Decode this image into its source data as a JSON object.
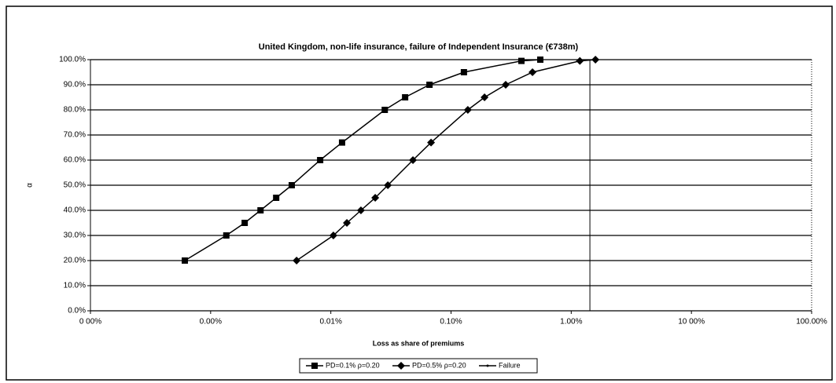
{
  "chart_data": {
    "type": "line",
    "title": "United Kingdom, non-life insurance, failure of Independent Insurance (€738m)",
    "x_label": "Loss as share of premiums",
    "y_label": "α",
    "x_log": true,
    "grid": true,
    "legend": "bottom",
    "xlim": [
      0.0001,
      100
    ],
    "xticks": [
      {
        "value": 0.0001,
        "label": "0 00%"
      },
      {
        "value": 0.001,
        "label": "0.00%"
      },
      {
        "value": 0.01,
        "label": "0.01%"
      },
      {
        "value": 0.1,
        "label": "0.10%"
      },
      {
        "value": 1,
        "label": "1.00%"
      },
      {
        "value": 10,
        "label": "10 00%"
      },
      {
        "value": 100,
        "label": "100.00%"
      }
    ],
    "ylim": [
      0,
      100
    ],
    "yticks": [
      {
        "value": 0,
        "label": "0.0%"
      },
      {
        "value": 10,
        "label": "10.0%"
      },
      {
        "value": 20,
        "label": "20.0%"
      },
      {
        "value": 30,
        "label": "30.0%"
      },
      {
        "value": 40,
        "label": "40.0%"
      },
      {
        "value": 50,
        "label": "50.0%"
      },
      {
        "value": 60,
        "label": "60.0%"
      },
      {
        "value": 70,
        "label": "70.0%"
      },
      {
        "value": 80,
        "label": "80.0%"
      },
      {
        "value": 90,
        "label": "90.0%"
      },
      {
        "value": 100,
        "label": "100.0%"
      }
    ],
    "series": [
      {
        "name": "PD=0.1% ρ=0.20",
        "color": "#000000",
        "marker": "square",
        "x": [
          0.00061,
          0.00135,
          0.00192,
          0.0026,
          0.00351,
          0.00473,
          0.00815,
          0.0124,
          0.0281,
          0.0415,
          0.0662,
          0.128,
          0.385,
          0.553
        ],
        "values": [
          20,
          30,
          35,
          40,
          45,
          50,
          60,
          67,
          80,
          85,
          90,
          95,
          99.5,
          100
        ]
      },
      {
        "name": "PD=0.5% ρ=0.20",
        "color": "#000000",
        "marker": "diamond",
        "x": [
          0.00519,
          0.0105,
          0.0136,
          0.0178,
          0.0234,
          0.0298,
          0.0482,
          0.0682,
          0.138,
          0.19,
          0.285,
          0.476,
          1.18,
          1.59
        ],
        "values": [
          20,
          30,
          35,
          40,
          45,
          50,
          60,
          67,
          80,
          85,
          90,
          95,
          99.5,
          100
        ]
      },
      {
        "name": "Failure",
        "color": "#000000",
        "marker": "none",
        "x": [
          1.43,
          1.43
        ],
        "values": [
          0,
          100
        ]
      }
    ]
  }
}
